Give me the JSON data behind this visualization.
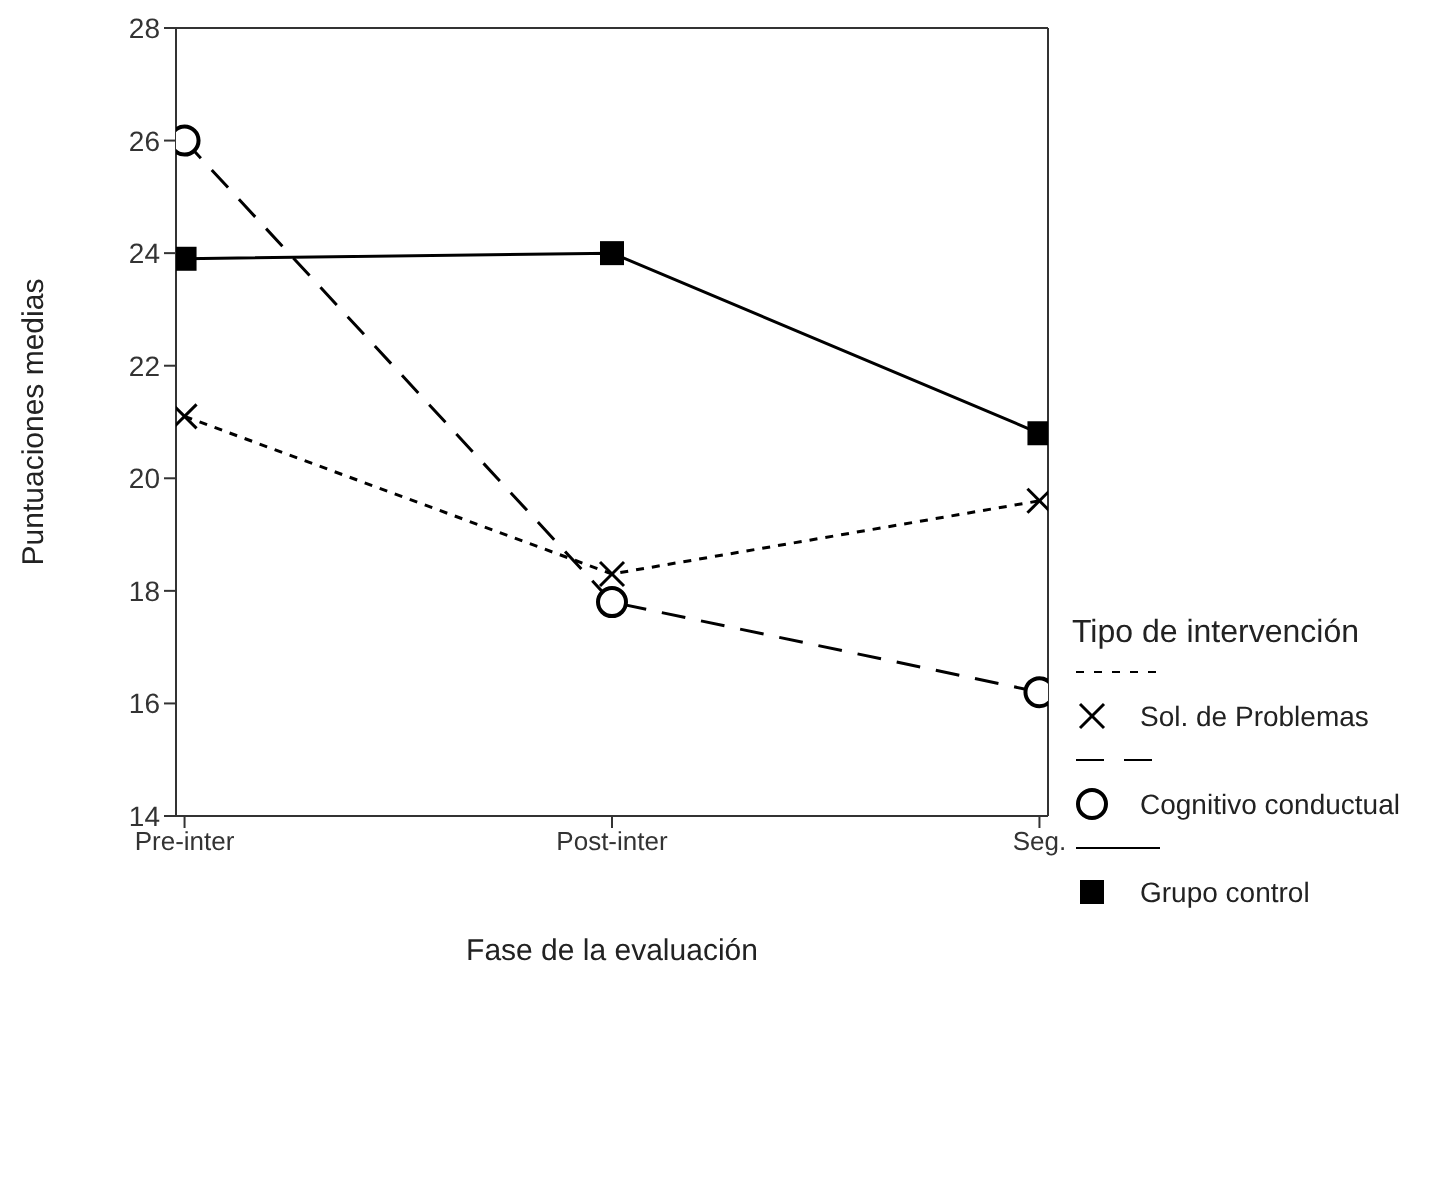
{
  "chart_data": {
    "type": "line",
    "xlabel": "Fase de la evaluación",
    "ylabel": "Puntuaciones medias",
    "legend_title": "Tipo de intervención",
    "categories": [
      "Pre-inter",
      "Post-inter",
      "Seg."
    ],
    "series": [
      {
        "name": "Sol. de Problemas",
        "color": "#000000",
        "values": [
          21.1,
          18.3,
          19.6
        ],
        "marker": "cross",
        "line_style": "dotted"
      },
      {
        "name": "Cognitivo conductual",
        "color": "#000000",
        "values": [
          26.0,
          17.8,
          16.2
        ],
        "marker": "circle",
        "line_style": "dashed"
      },
      {
        "name": "Grupo control",
        "color": "#000000",
        "values": [
          23.9,
          24.0,
          20.8
        ],
        "marker": "square",
        "line_style": "solid"
      }
    ],
    "ylim": [
      14,
      28
    ],
    "yticks": [
      14,
      16,
      18,
      20,
      22,
      24,
      26,
      28
    ],
    "grid": false,
    "legend": "right"
  }
}
